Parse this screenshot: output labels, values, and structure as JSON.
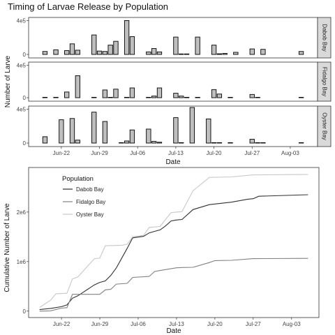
{
  "figure_title": "Timing of Larvae Release by Population",
  "chart_data": [
    {
      "type": "bar",
      "title": "Timing of Larvae Release by Population",
      "xlabel": "Date",
      "ylabel": "Number of Larve",
      "x_tick_labels": [
        "Jun-22",
        "Jun-29",
        "Jul-06",
        "Jul-13",
        "Jul-20",
        "Jul-27",
        "Aug-03"
      ],
      "x_tick_dates": [
        "2017-06-22",
        "2017-06-29",
        "2017-07-06",
        "2017-07-13",
        "2017-07-20",
        "2017-07-27",
        "2017-08-03"
      ],
      "x_range": [
        "2017-06-16",
        "2017-08-08"
      ],
      "y_tick_labels": [
        "0",
        "4e5"
      ],
      "y_ticks": [
        0,
        400000
      ],
      "ylim": [
        0,
        420000
      ],
      "grid": false,
      "bar_color": "#bebebe",
      "bar_outline": "#000000",
      "panels": [
        {
          "name": "Dabob Bay",
          "bars": [
            {
              "date": "2017-06-19",
              "value": 35000
            },
            {
              "date": "2017-06-21",
              "value": 55000
            },
            {
              "date": "2017-06-23",
              "value": 45000
            },
            {
              "date": "2017-06-24",
              "value": 125000
            },
            {
              "date": "2017-06-25",
              "value": 50000
            },
            {
              "date": "2017-06-28",
              "value": 230000
            },
            {
              "date": "2017-06-29",
              "value": 40000
            },
            {
              "date": "2017-06-30",
              "value": 35000
            },
            {
              "date": "2017-07-01",
              "value": 110000
            },
            {
              "date": "2017-07-02",
              "value": 155000
            },
            {
              "date": "2017-07-04",
              "value": 400000
            },
            {
              "date": "2017-07-05",
              "value": 210000
            },
            {
              "date": "2017-07-08",
              "value": 30000
            },
            {
              "date": "2017-07-09",
              "value": 70000
            },
            {
              "date": "2017-07-10",
              "value": 30000
            },
            {
              "date": "2017-07-13",
              "value": 205000
            },
            {
              "date": "2017-07-14",
              "value": 6000
            },
            {
              "date": "2017-07-15",
              "value": 6000
            },
            {
              "date": "2017-07-17",
              "value": 205000
            },
            {
              "date": "2017-07-20",
              "value": 110000
            },
            {
              "date": "2017-07-21",
              "value": 8000
            },
            {
              "date": "2017-07-22",
              "value": 12000
            },
            {
              "date": "2017-07-24",
              "value": 25000
            },
            {
              "date": "2017-07-27",
              "value": 65000
            },
            {
              "date": "2017-07-29",
              "value": 60000
            },
            {
              "date": "2017-08-05",
              "value": 35000
            }
          ]
        },
        {
          "name": "Fidalgo Bay",
          "bars": [
            {
              "date": "2017-06-19",
              "value": 5000
            },
            {
              "date": "2017-06-21",
              "value": 5000
            },
            {
              "date": "2017-06-23",
              "value": 70000
            },
            {
              "date": "2017-06-25",
              "value": 270000
            },
            {
              "date": "2017-06-28",
              "value": 5000
            },
            {
              "date": "2017-06-30",
              "value": 95000
            },
            {
              "date": "2017-07-01",
              "value": 5000
            },
            {
              "date": "2017-07-02",
              "value": 105000
            },
            {
              "date": "2017-07-04",
              "value": 5000
            },
            {
              "date": "2017-07-05",
              "value": 120000
            },
            {
              "date": "2017-07-08",
              "value": 5000
            },
            {
              "date": "2017-07-09",
              "value": 20000
            },
            {
              "date": "2017-07-10",
              "value": 120000
            },
            {
              "date": "2017-07-13",
              "value": 55000
            },
            {
              "date": "2017-07-14",
              "value": 20000
            },
            {
              "date": "2017-07-15",
              "value": 5000
            },
            {
              "date": "2017-07-17",
              "value": 5000
            },
            {
              "date": "2017-07-20",
              "value": 100000
            },
            {
              "date": "2017-07-21",
              "value": 45000
            },
            {
              "date": "2017-07-23",
              "value": 5000
            },
            {
              "date": "2017-07-27",
              "value": 40000
            },
            {
              "date": "2017-07-28",
              "value": 5000
            },
            {
              "date": "2017-08-05",
              "value": 5000
            }
          ]
        },
        {
          "name": "Oyster Bay",
          "bars": [
            {
              "date": "2017-06-19",
              "value": 75000
            },
            {
              "date": "2017-06-22",
              "value": 275000
            },
            {
              "date": "2017-06-24",
              "value": 290000
            },
            {
              "date": "2017-06-25",
              "value": 35000
            },
            {
              "date": "2017-06-28",
              "value": 365000
            },
            {
              "date": "2017-06-30",
              "value": 255000
            },
            {
              "date": "2017-07-03",
              "value": 5000
            },
            {
              "date": "2017-07-04",
              "value": 25000
            },
            {
              "date": "2017-07-05",
              "value": 155000
            },
            {
              "date": "2017-07-08",
              "value": 165000
            },
            {
              "date": "2017-07-09",
              "value": 20000
            },
            {
              "date": "2017-07-10",
              "value": 10000
            },
            {
              "date": "2017-07-13",
              "value": 300000
            },
            {
              "date": "2017-07-14",
              "value": 5000
            },
            {
              "date": "2017-07-16",
              "value": 420000
            },
            {
              "date": "2017-07-19",
              "value": 285000
            },
            {
              "date": "2017-07-20",
              "value": 5000
            },
            {
              "date": "2017-07-21",
              "value": 5000
            },
            {
              "date": "2017-07-23",
              "value": 5000
            },
            {
              "date": "2017-07-27",
              "value": 45000
            },
            {
              "date": "2017-07-28",
              "value": 5000
            },
            {
              "date": "2017-07-29",
              "value": 5000
            },
            {
              "date": "2017-08-05",
              "value": 5000
            }
          ]
        }
      ]
    },
    {
      "type": "line",
      "xlabel": "Date",
      "ylabel": "Cumulative Number of Larve",
      "x_tick_labels": [
        "Jun-22",
        "Jun-29",
        "Jul-06",
        "Jul-13",
        "Jul-20",
        "Jul-27",
        "Aug-03"
      ],
      "x_tick_dates": [
        "2017-06-22",
        "2017-06-29",
        "2017-07-06",
        "2017-07-13",
        "2017-07-20",
        "2017-07-27",
        "2017-08-03"
      ],
      "x_range": [
        "2017-06-16",
        "2017-08-08"
      ],
      "y_tick_labels": [
        "0",
        "1e6",
        "2e6"
      ],
      "y_ticks": [
        0,
        1000000,
        2000000
      ],
      "ylim": [
        -130000,
        2900000
      ],
      "grid": false,
      "legend": {
        "title": "Population",
        "position": "top-left"
      },
      "series": [
        {
          "name": "Dabob Bay",
          "color": "#303030",
          "points": [
            [
              "2017-06-18",
              30000
            ],
            [
              "2017-06-20",
              55000
            ],
            [
              "2017-06-22",
              90000
            ],
            [
              "2017-06-23",
              125000
            ],
            [
              "2017-06-24",
              260000
            ],
            [
              "2017-06-25",
              310000
            ],
            [
              "2017-06-28",
              530000
            ],
            [
              "2017-06-29",
              580000
            ],
            [
              "2017-06-30",
              610000
            ],
            [
              "2017-07-01",
              720000
            ],
            [
              "2017-07-02",
              870000
            ],
            [
              "2017-07-04",
              1270000
            ],
            [
              "2017-07-05",
              1480000
            ],
            [
              "2017-07-07",
              1510000
            ],
            [
              "2017-07-08",
              1580000
            ],
            [
              "2017-07-09",
              1610000
            ],
            [
              "2017-07-10",
              1640000
            ],
            [
              "2017-07-11",
              1720000
            ],
            [
              "2017-07-12",
              1820000
            ],
            [
              "2017-07-13",
              1840000
            ],
            [
              "2017-07-14",
              1850000
            ],
            [
              "2017-07-16",
              2050000
            ],
            [
              "2017-07-19",
              2150000
            ],
            [
              "2017-07-23",
              2200000
            ],
            [
              "2017-07-26",
              2260000
            ],
            [
              "2017-07-27",
              2270000
            ],
            [
              "2017-07-28",
              2320000
            ],
            [
              "2017-08-06",
              2350000
            ]
          ]
        },
        {
          "name": "Fidalgo Bay",
          "color": "#808080",
          "points": [
            [
              "2017-06-18",
              0
            ],
            [
              "2017-06-20",
              5000
            ],
            [
              "2017-06-22",
              60000
            ],
            [
              "2017-06-23",
              70000
            ],
            [
              "2017-06-24",
              340000
            ],
            [
              "2017-06-29",
              340000
            ],
            [
              "2017-06-30",
              430000
            ],
            [
              "2017-07-01",
              440000
            ],
            [
              "2017-07-02",
              545000
            ],
            [
              "2017-07-04",
              560000
            ],
            [
              "2017-07-05",
              680000
            ],
            [
              "2017-07-08",
              700000
            ],
            [
              "2017-07-09",
              800000
            ],
            [
              "2017-07-10",
              820000
            ],
            [
              "2017-07-13",
              875000
            ],
            [
              "2017-07-14",
              880000
            ],
            [
              "2017-07-16",
              885000
            ],
            [
              "2017-07-19",
              980000
            ],
            [
              "2017-07-20",
              1020000
            ],
            [
              "2017-07-23",
              1025000
            ],
            [
              "2017-07-27",
              1060000
            ],
            [
              "2017-08-06",
              1065000
            ]
          ]
        },
        {
          "name": "Oyster Bay",
          "color": "#c8c8c8",
          "points": [
            [
              "2017-06-18",
              75000
            ],
            [
              "2017-06-20",
              220000
            ],
            [
              "2017-06-21",
              350000
            ],
            [
              "2017-06-23",
              360000
            ],
            [
              "2017-06-24",
              650000
            ],
            [
              "2017-06-25",
              690000
            ],
            [
              "2017-06-28",
              1060000
            ],
            [
              "2017-06-29",
              1070000
            ],
            [
              "2017-06-30",
              1320000
            ],
            [
              "2017-07-03",
              1330000
            ],
            [
              "2017-07-04",
              1350000
            ],
            [
              "2017-07-05",
              1500000
            ],
            [
              "2017-07-07",
              1530000
            ],
            [
              "2017-07-08",
              1690000
            ],
            [
              "2017-07-10",
              1710000
            ],
            [
              "2017-07-12",
              1990000
            ],
            [
              "2017-07-14",
              2010000
            ],
            [
              "2017-07-16",
              2430000
            ],
            [
              "2017-07-19",
              2700000
            ],
            [
              "2017-07-23",
              2710000
            ],
            [
              "2017-07-27",
              2750000
            ],
            [
              "2017-08-06",
              2760000
            ]
          ]
        }
      ]
    }
  ]
}
